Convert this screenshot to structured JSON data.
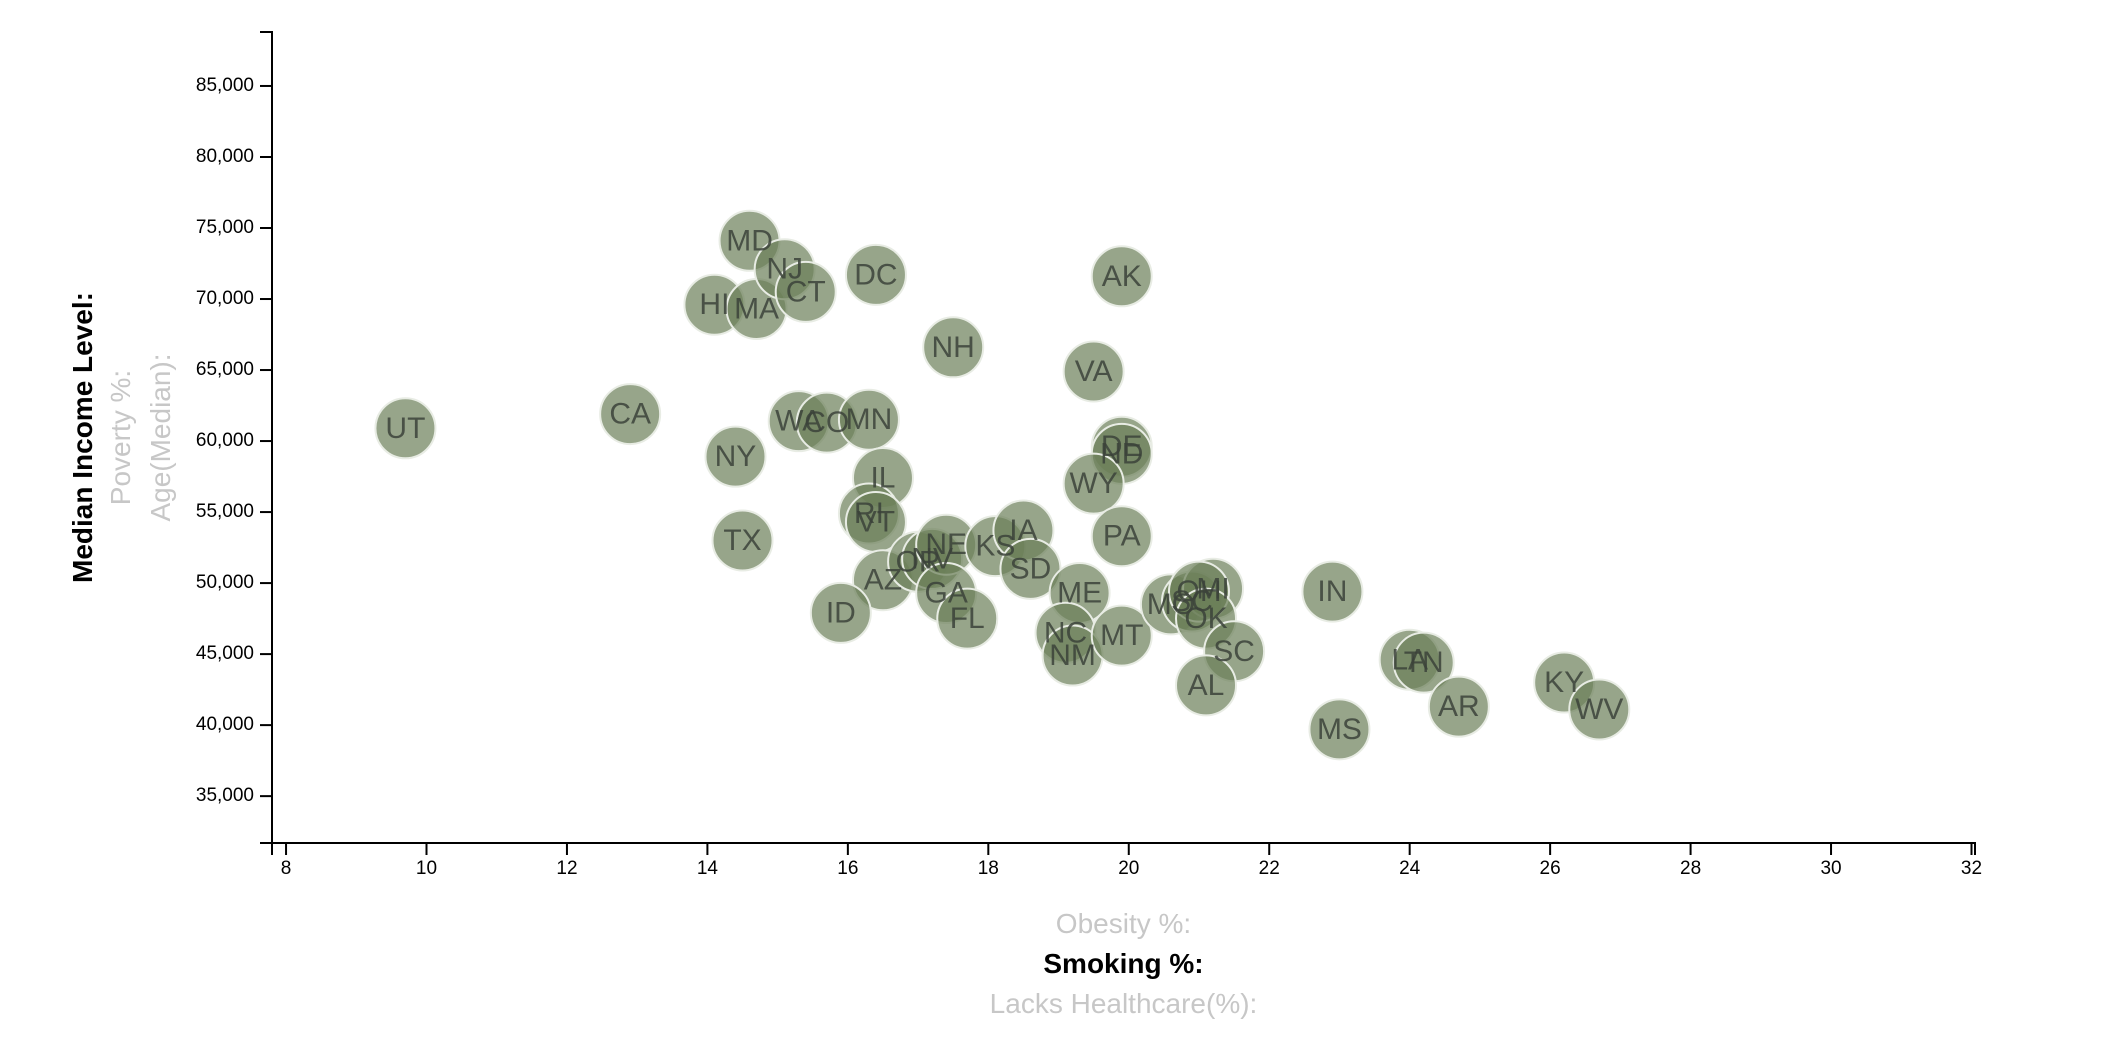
{
  "chart_data": {
    "type": "scatter",
    "x_axis": {
      "ticks": [
        8,
        10,
        12,
        14,
        16,
        18,
        20,
        22,
        24,
        26,
        28,
        30,
        32
      ],
      "range": [
        7.8,
        32.05
      ],
      "labels": [
        {
          "text": "Obesity %:",
          "active": false
        },
        {
          "text": "Smoking %:",
          "active": true
        },
        {
          "text": "Lacks Healthcare(%):",
          "active": false
        }
      ]
    },
    "y_axis": {
      "ticks": [
        35000,
        40000,
        45000,
        50000,
        55000,
        60000,
        65000,
        70000,
        75000,
        80000,
        85000
      ],
      "tick_labels": [
        "35,000",
        "40,000",
        "45,000",
        "50,000",
        "55,000",
        "60,000",
        "65,000",
        "70,000",
        "75,000",
        "80,000",
        "85,000"
      ],
      "range": [
        31700,
        88800
      ],
      "labels": [
        {
          "text": "Median Income Level:",
          "active": true
        },
        {
          "text": "Poverty %:",
          "active": false
        },
        {
          "text": "Age(Median):",
          "active": false
        }
      ]
    },
    "points": [
      {
        "abbr": "UT",
        "x": 9.7,
        "y": 60900
      },
      {
        "abbr": "CA",
        "x": 12.9,
        "y": 61900
      },
      {
        "abbr": "NY",
        "x": 14.4,
        "y": 58900
      },
      {
        "abbr": "TX",
        "x": 14.5,
        "y": 53000
      },
      {
        "abbr": "MD",
        "x": 14.6,
        "y": 74100
      },
      {
        "abbr": "HI",
        "x": 14.1,
        "y": 69600
      },
      {
        "abbr": "MA",
        "x": 14.7,
        "y": 69300
      },
      {
        "abbr": "NJ",
        "x": 15.1,
        "y": 72100
      },
      {
        "abbr": "CT",
        "x": 15.4,
        "y": 70500
      },
      {
        "abbr": "WA",
        "x": 15.3,
        "y": 61400
      },
      {
        "abbr": "CO",
        "x": 15.7,
        "y": 61300
      },
      {
        "abbr": "MN",
        "x": 16.3,
        "y": 61500
      },
      {
        "abbr": "DC",
        "x": 16.4,
        "y": 71700
      },
      {
        "abbr": "IL",
        "x": 16.5,
        "y": 57400
      },
      {
        "abbr": "RI",
        "x": 16.3,
        "y": 54900
      },
      {
        "abbr": "VT",
        "x": 16.4,
        "y": 54300
      },
      {
        "abbr": "AZ",
        "x": 16.5,
        "y": 50200
      },
      {
        "abbr": "ID",
        "x": 15.9,
        "y": 47900
      },
      {
        "abbr": "NH",
        "x": 17.5,
        "y": 66600
      },
      {
        "abbr": "OR",
        "x": 17.0,
        "y": 51500
      },
      {
        "abbr": "NV",
        "x": 17.2,
        "y": 51700
      },
      {
        "abbr": "NE",
        "x": 17.4,
        "y": 52700
      },
      {
        "abbr": "GA",
        "x": 17.4,
        "y": 49300
      },
      {
        "abbr": "FL",
        "x": 17.7,
        "y": 47500
      },
      {
        "abbr": "KS",
        "x": 18.1,
        "y": 52600
      },
      {
        "abbr": "IA",
        "x": 18.5,
        "y": 53700
      },
      {
        "abbr": "SD",
        "x": 18.6,
        "y": 51000
      },
      {
        "abbr": "ME",
        "x": 19.3,
        "y": 49300
      },
      {
        "abbr": "NC",
        "x": 19.1,
        "y": 46500
      },
      {
        "abbr": "NM",
        "x": 19.2,
        "y": 44900
      },
      {
        "abbr": "AK",
        "x": 19.9,
        "y": 71600
      },
      {
        "abbr": "VA",
        "x": 19.5,
        "y": 64900
      },
      {
        "abbr": "DE",
        "x": 19.9,
        "y": 59600
      },
      {
        "abbr": "ND",
        "x": 19.9,
        "y": 59100
      },
      {
        "abbr": "WY",
        "x": 19.5,
        "y": 57000
      },
      {
        "abbr": "PA",
        "x": 19.9,
        "y": 53300
      },
      {
        "abbr": "MT",
        "x": 19.9,
        "y": 46300
      },
      {
        "abbr": "MO",
        "x": 20.6,
        "y": 48500
      },
      {
        "abbr": "SC",
        "x": 20.9,
        "y": 48700
      },
      {
        "abbr": "MI",
        "x": 21.2,
        "y": 49600
      },
      {
        "abbr": "OH",
        "x": 21.0,
        "y": 49400
      },
      {
        "abbr": "OK",
        "x": 21.1,
        "y": 47500
      },
      {
        "abbr": "SC",
        "x": 21.5,
        "y": 45200
      },
      {
        "abbr": "AL",
        "x": 21.1,
        "y": 42800
      },
      {
        "abbr": "IN",
        "x": 22.9,
        "y": 49400
      },
      {
        "abbr": "MS",
        "x": 23.0,
        "y": 39700
      },
      {
        "abbr": "LA",
        "x": 24.0,
        "y": 44600
      },
      {
        "abbr": "TN",
        "x": 24.2,
        "y": 44400
      },
      {
        "abbr": "AR",
        "x": 24.7,
        "y": 41300
      },
      {
        "abbr": "KY",
        "x": 26.2,
        "y": 43000
      },
      {
        "abbr": "WV",
        "x": 26.7,
        "y": 41100
      }
    ]
  }
}
